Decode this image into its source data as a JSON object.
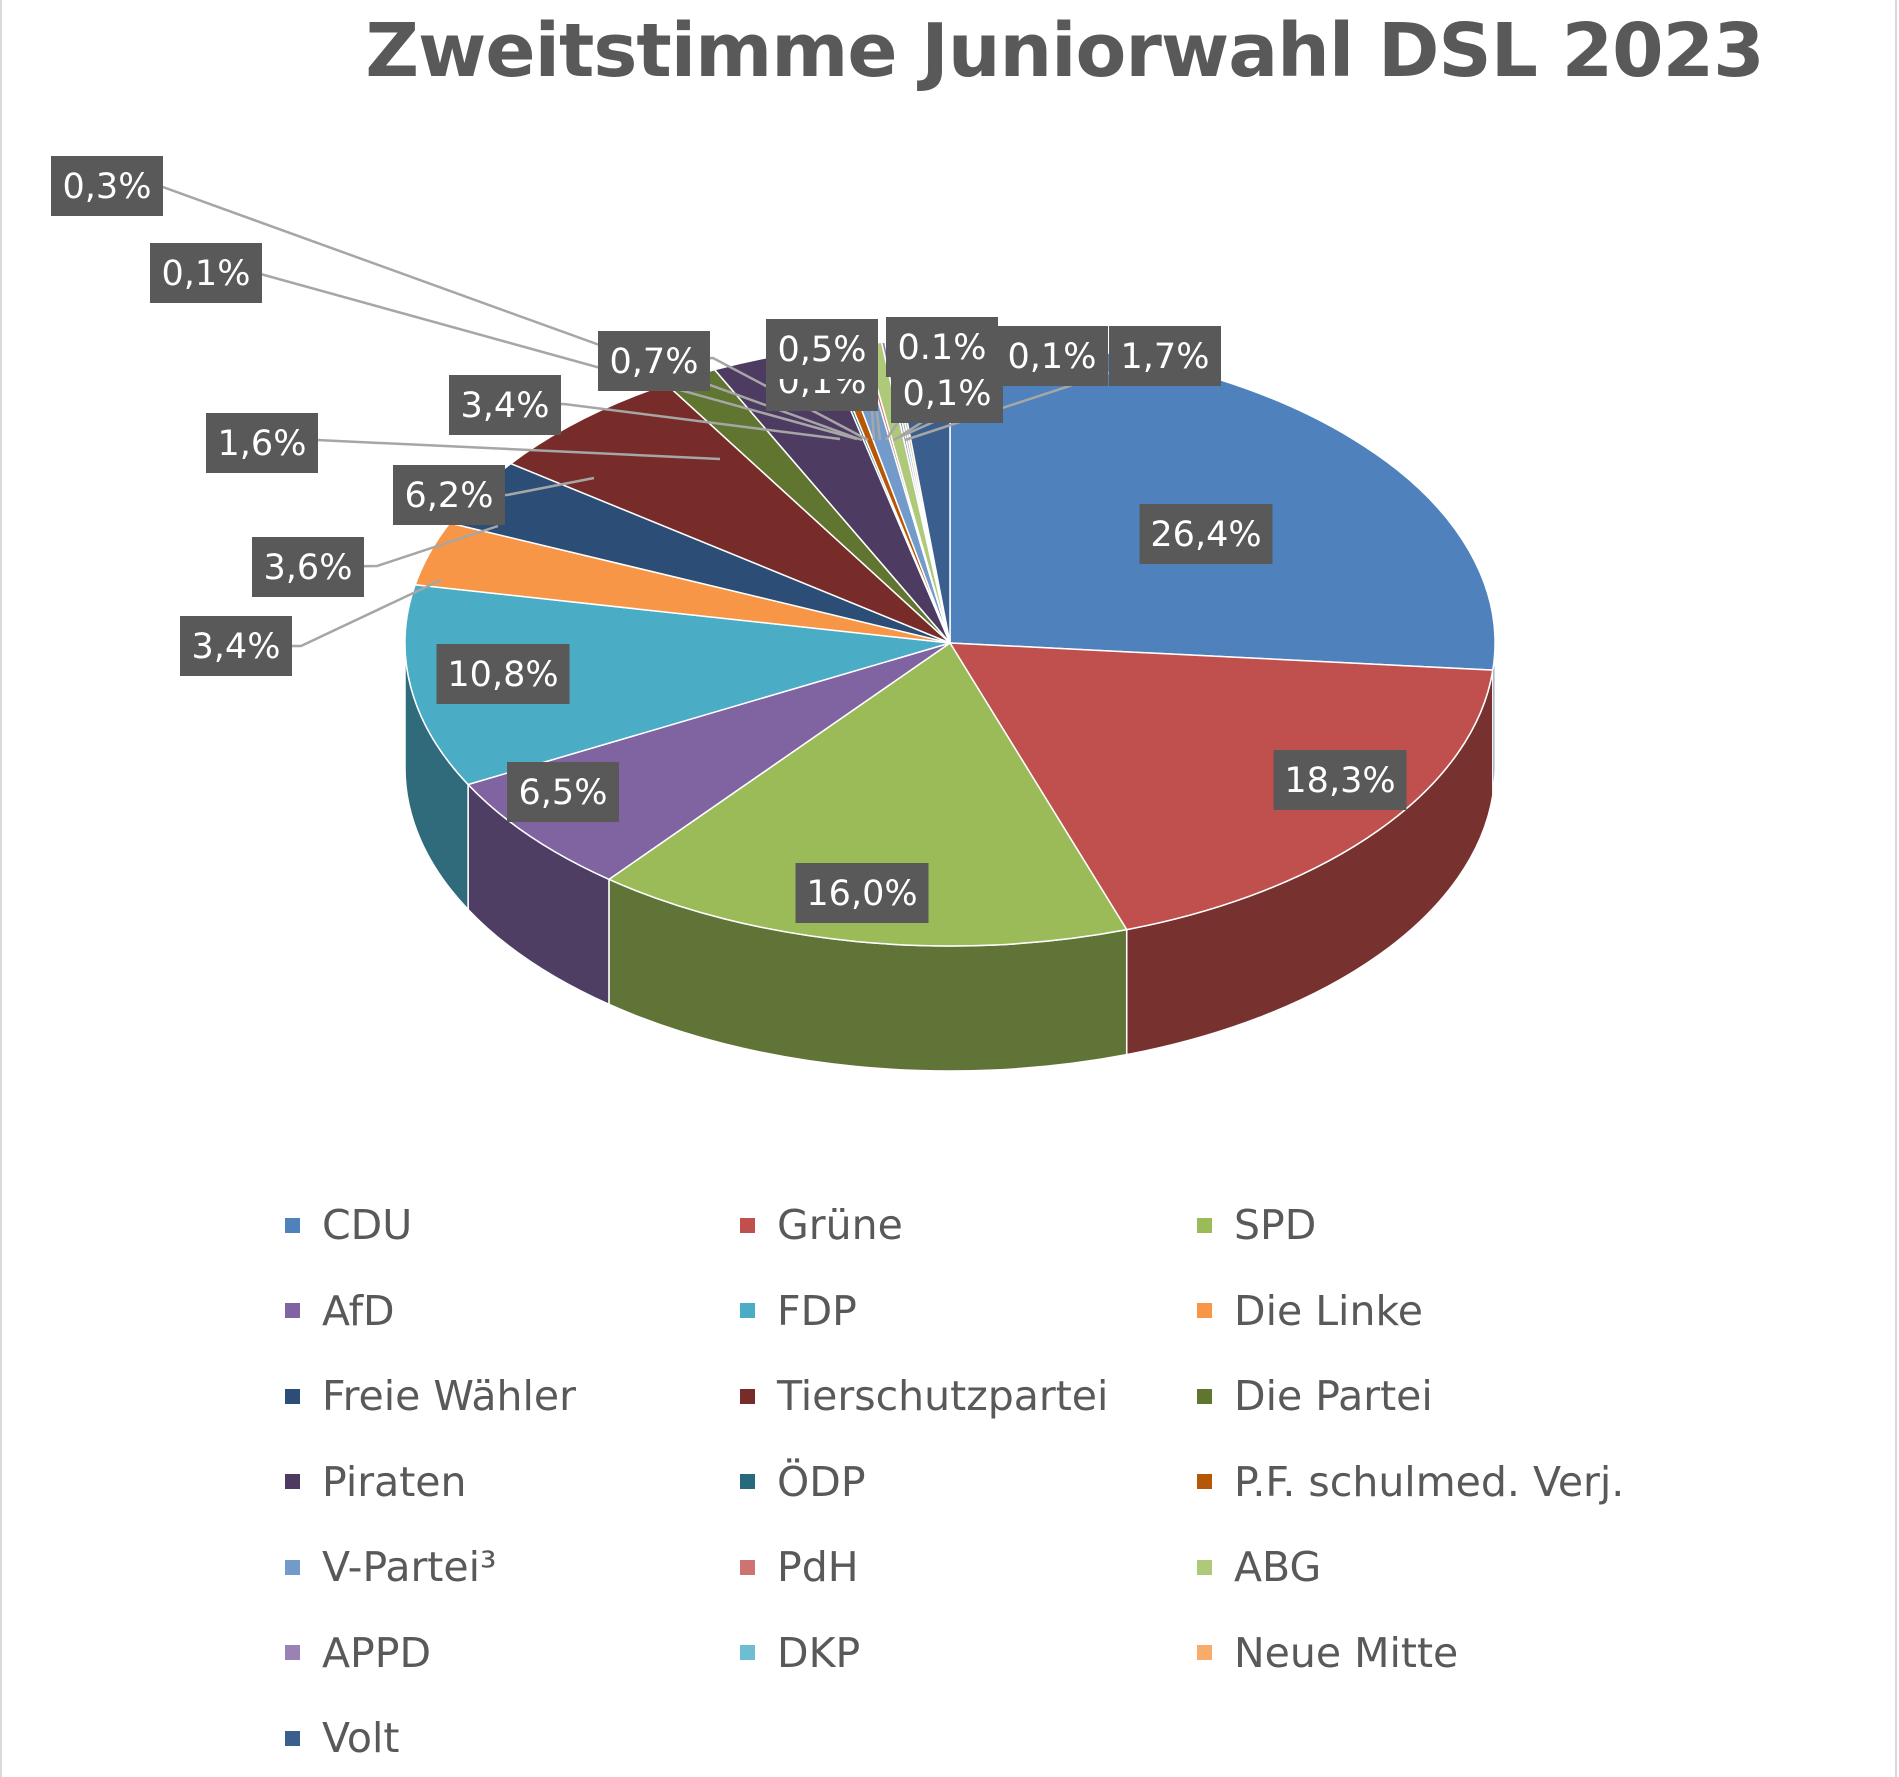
{
  "chart_data": {
    "type": "pie",
    "title": "Zweitstimme Juniorwahl DSL 2023",
    "legend_position": "bottom",
    "slices": [
      {
        "name": "CDU",
        "value": 26.4,
        "label": "26,4%",
        "color": "#4F81BD"
      },
      {
        "name": "Grüne",
        "value": 18.3,
        "label": "18,3%",
        "color": "#C0504D"
      },
      {
        "name": "SPD",
        "value": 16.0,
        "label": "16,0%",
        "color": "#9BBB59"
      },
      {
        "name": "AfD",
        "value": 6.5,
        "label": "6,5%",
        "color": "#8064A2"
      },
      {
        "name": "FDP",
        "value": 10.8,
        "label": "10,8%",
        "color": "#4BACC6"
      },
      {
        "name": "Die Linke",
        "value": 3.4,
        "label": "3,4%",
        "color": "#F79646"
      },
      {
        "name": "Freie Wähler",
        "value": 3.6,
        "label": "3,6%",
        "color": "#2C4D75"
      },
      {
        "name": "Tierschutzpartei",
        "value": 6.2,
        "label": "6,2%",
        "color": "#772C2A"
      },
      {
        "name": "Die Partei",
        "value": 1.6,
        "label": "1,6%",
        "color": "#5F7530"
      },
      {
        "name": "Piraten",
        "value": 3.4,
        "label": "3,4%",
        "color": "#4D3B62"
      },
      {
        "name": "ÖDP",
        "value": 0.1,
        "label": "0,1%",
        "color": "#276A7C"
      },
      {
        "name": "P.F. schulmed. Verj.",
        "value": 0.3,
        "label": "0,3%",
        "color": "#B65708"
      },
      {
        "name": "V-Partei³",
        "value": 0.7,
        "label": "0,7%",
        "color": "#729ACA"
      },
      {
        "name": "PdH",
        "value": 0.1,
        "label": "0,1%",
        "color": "#CD7371"
      },
      {
        "name": "ABG",
        "value": 0.5,
        "label": "0,5%",
        "color": "#AFC97A"
      },
      {
        "name": "APPD",
        "value": 0.1,
        "label": "0.1%",
        "color": "#9983B5"
      },
      {
        "name": "DKP",
        "value": 0.1,
        "label": "0,1%",
        "color": "#6FBDD1"
      },
      {
        "name": "Neue Mitte",
        "value": 0.1,
        "label": "0,1%",
        "color": "#F9AB6B"
      },
      {
        "name": "Volt",
        "value": 1.7,
        "label": "1,7%",
        "color": "#3A5F8F"
      }
    ]
  }
}
